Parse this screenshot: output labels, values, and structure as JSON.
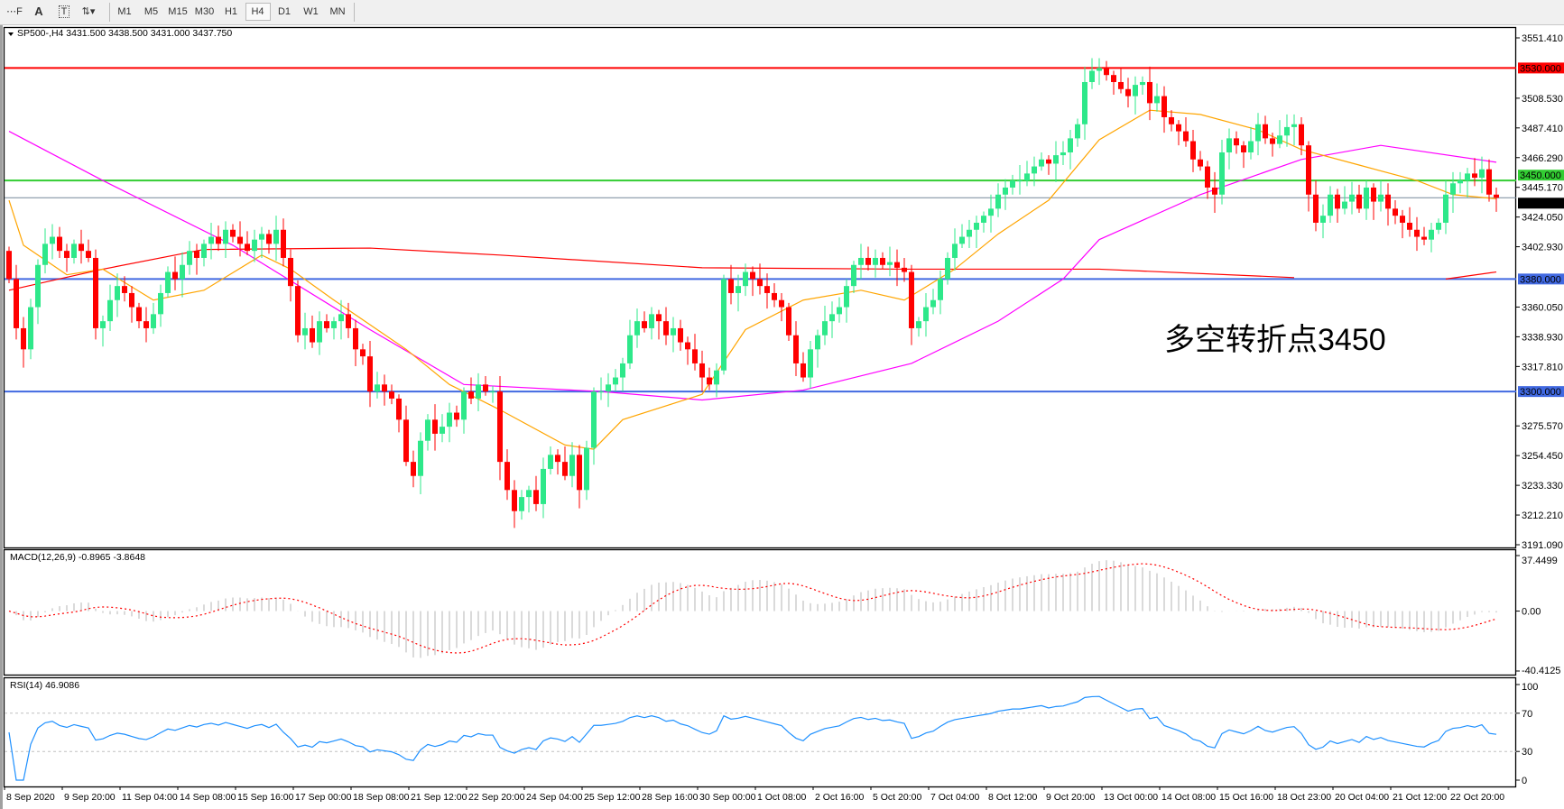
{
  "toolbar": {
    "tools": [
      {
        "name": "fibonacci-tool-icon",
        "glyph": "⋯F"
      },
      {
        "name": "text-tool-icon",
        "glyph": "A"
      },
      {
        "name": "text-label-tool-icon",
        "glyph": "T"
      },
      {
        "name": "arrows-tool-icon",
        "glyph": "⇅▾"
      }
    ],
    "timeframes": [
      "M1",
      "M5",
      "M15",
      "M30",
      "H1",
      "H4",
      "D1",
      "W1",
      "MN"
    ],
    "active_timeframe": "H4"
  },
  "chart": {
    "header": "SP500-,H4  3431.500 3438.500 3431.000 3437.750",
    "annotation": "多空转折点3450",
    "annotation_color": "#ff2020",
    "colors": {
      "bull": "#2ee88a",
      "bear": "#ff0000",
      "ma_fast": "#ffa500",
      "ma_mid": "#ff00ff",
      "ma_slow": "#ff0000",
      "rsi": "#1e90ff",
      "macd_hist": "#c0c0c0",
      "macd_signal": "#ff0000"
    },
    "price_axis": [
      "3551.410",
      "3508.530",
      "3487.410",
      "3466.290",
      "3445.170",
      "3424.050",
      "3402.930",
      "3360.050",
      "3338.930",
      "3317.810",
      "3275.570",
      "3254.450",
      "3233.330",
      "3212.210",
      "3191.090"
    ],
    "price_range": [
      3191.09,
      3551.41
    ],
    "levels": [
      {
        "price": 3530.0,
        "label": "3530.000",
        "color": "#ff0000",
        "text_color": "#ffffff"
      },
      {
        "price": 3450.0,
        "label": "3450.000",
        "color": "#32cd32",
        "text_color": "#ffffff"
      },
      {
        "price": 3437.75,
        "label": "3437.750",
        "color": "#000000",
        "line_color": "#778899",
        "text_color": "#ffffff"
      },
      {
        "price": 3380.0,
        "label": "3380.000",
        "color": "#4169e1",
        "text_color": "#ffffff"
      },
      {
        "price": 3300.0,
        "label": "3300.000",
        "color": "#4169e1",
        "text_color": "#ffffff"
      }
    ],
    "closes": [
      3380,
      3345,
      3330,
      3360,
      3390,
      3405,
      3410,
      3400,
      3395,
      3405,
      3400,
      3395,
      3345,
      3350,
      3365,
      3375,
      3370,
      3360,
      3350,
      3345,
      3355,
      3370,
      3385,
      3380,
      3390,
      3400,
      3395,
      3405,
      3410,
      3405,
      3415,
      3410,
      3405,
      3400,
      3408,
      3412,
      3405,
      3415,
      3395,
      3375,
      3340,
      3345,
      3335,
      3350,
      3345,
      3350,
      3355,
      3345,
      3330,
      3325,
      3300,
      3305,
      3300,
      3295,
      3280,
      3250,
      3240,
      3265,
      3280,
      3270,
      3275,
      3285,
      3280,
      3300,
      3295,
      3305,
      3300,
      3300,
      3250,
      3230,
      3215,
      3225,
      3230,
      3220,
      3245,
      3255,
      3250,
      3240,
      3255,
      3230,
      3260,
      3300,
      3300,
      3305,
      3310,
      3320,
      3340,
      3350,
      3345,
      3355,
      3350,
      3340,
      3345,
      3335,
      3330,
      3320,
      3310,
      3305,
      3315,
      3380,
      3370,
      3375,
      3385,
      3380,
      3375,
      3370,
      3365,
      3360,
      3340,
      3320,
      3310,
      3330,
      3340,
      3350,
      3355,
      3360,
      3375,
      3390,
      3395,
      3390,
      3395,
      3390,
      3392,
      3388,
      3385,
      3345,
      3350,
      3360,
      3365,
      3380,
      3395,
      3405,
      3410,
      3415,
      3420,
      3425,
      3430,
      3440,
      3445,
      3450,
      3450,
      3455,
      3460,
      3465,
      3462,
      3468,
      3470,
      3480,
      3490,
      3520,
      3528,
      3530,
      3525,
      3520,
      3515,
      3510,
      3518,
      3520,
      3505,
      3510,
      3495,
      3490,
      3485,
      3478,
      3465,
      3460,
      3445,
      3440,
      3470,
      3480,
      3475,
      3470,
      3478,
      3490,
      3480,
      3476,
      3482,
      3488,
      3490,
      3475,
      3440,
      3420,
      3425,
      3440,
      3430,
      3435,
      3440,
      3430,
      3445,
      3435,
      3440,
      3430,
      3425,
      3420,
      3415,
      3410,
      3408,
      3415,
      3420,
      3440,
      3448,
      3450,
      3455,
      3452,
      3458,
      3440,
      3437.75
    ],
    "first_open": 3400,
    "ma_fast": [
      [
        0,
        3436
      ],
      [
        2,
        3404
      ],
      [
        8,
        3383
      ],
      [
        13,
        3387
      ],
      [
        20,
        3365
      ],
      [
        27,
        3372
      ],
      [
        35,
        3397
      ],
      [
        39,
        3387
      ],
      [
        45,
        3365
      ],
      [
        55,
        3330
      ],
      [
        61,
        3305
      ],
      [
        68,
        3287
      ],
      [
        77,
        3262
      ],
      [
        81,
        3259
      ],
      [
        85,
        3280
      ],
      [
        96,
        3298
      ],
      [
        102,
        3344
      ],
      [
        110,
        3365
      ],
      [
        118,
        3372
      ],
      [
        124,
        3365
      ],
      [
        131,
        3387
      ],
      [
        137,
        3412
      ],
      [
        144,
        3436
      ],
      [
        151,
        3479
      ],
      [
        158,
        3500
      ],
      [
        165,
        3497
      ],
      [
        173,
        3486
      ],
      [
        179,
        3472
      ],
      [
        187,
        3461
      ],
      [
        195,
        3450
      ],
      [
        200,
        3440
      ],
      [
        206,
        3437
      ]
    ],
    "ma_mid": [
      [
        0,
        3485
      ],
      [
        13,
        3450
      ],
      [
        31,
        3404
      ],
      [
        50,
        3344
      ],
      [
        63,
        3305
      ],
      [
        82,
        3300
      ],
      [
        96,
        3294
      ],
      [
        110,
        3301
      ],
      [
        125,
        3320
      ],
      [
        137,
        3350
      ],
      [
        146,
        3380
      ],
      [
        151,
        3408
      ],
      [
        165,
        3440
      ],
      [
        179,
        3465
      ],
      [
        190,
        3475
      ],
      [
        206,
        3463
      ]
    ],
    "ma_slow": [
      [
        [
          0,
          3372
        ],
        [
          13,
          3387
        ],
        [
          27,
          3401
        ],
        [
          50,
          3402
        ],
        [
          68,
          3397
        ],
        [
          96,
          3388
        ],
        [
          124,
          3387
        ],
        [
          151,
          3387
        ],
        [
          178,
          3381
        ]
      ],
      [
        [
          199,
          3380
        ],
        [
          206,
          3385
        ]
      ]
    ],
    "time_axis": [
      "8 Sep 2020",
      "9 Sep 20:00",
      "11 Sep 04:00",
      "14 Sep 08:00",
      "15 Sep 16:00",
      "17 Sep 00:00",
      "18 Sep 08:00",
      "21 Sep 12:00",
      "22 Sep 20:00",
      "24 Sep 04:00",
      "25 Sep 12:00",
      "28 Sep 16:00",
      "30 Sep 00:00",
      "1 Oct 08:00",
      "2 Oct 16:00",
      "5 Oct 20:00",
      "7 Oct 04:00",
      "8 Oct 12:00",
      "9 Oct 20:00",
      "13 Oct 00:00",
      "14 Oct 08:00",
      "15 Oct 16:00",
      "18 Oct 23:00",
      "20 Oct 04:00",
      "21 Oct 12:00",
      "22 Oct 20:00"
    ]
  },
  "macd": {
    "label": "MACD(12,26,9) -0.8965 -3.8648",
    "axis": [
      "37.4499",
      "0.00",
      "-40.4125"
    ],
    "range": [
      -40.4125,
      37.4499
    ]
  },
  "rsi": {
    "label": "RSI(14) 46.9086",
    "axis": [
      "100",
      "70",
      "30",
      "0"
    ],
    "levels": [
      70,
      30
    ]
  }
}
